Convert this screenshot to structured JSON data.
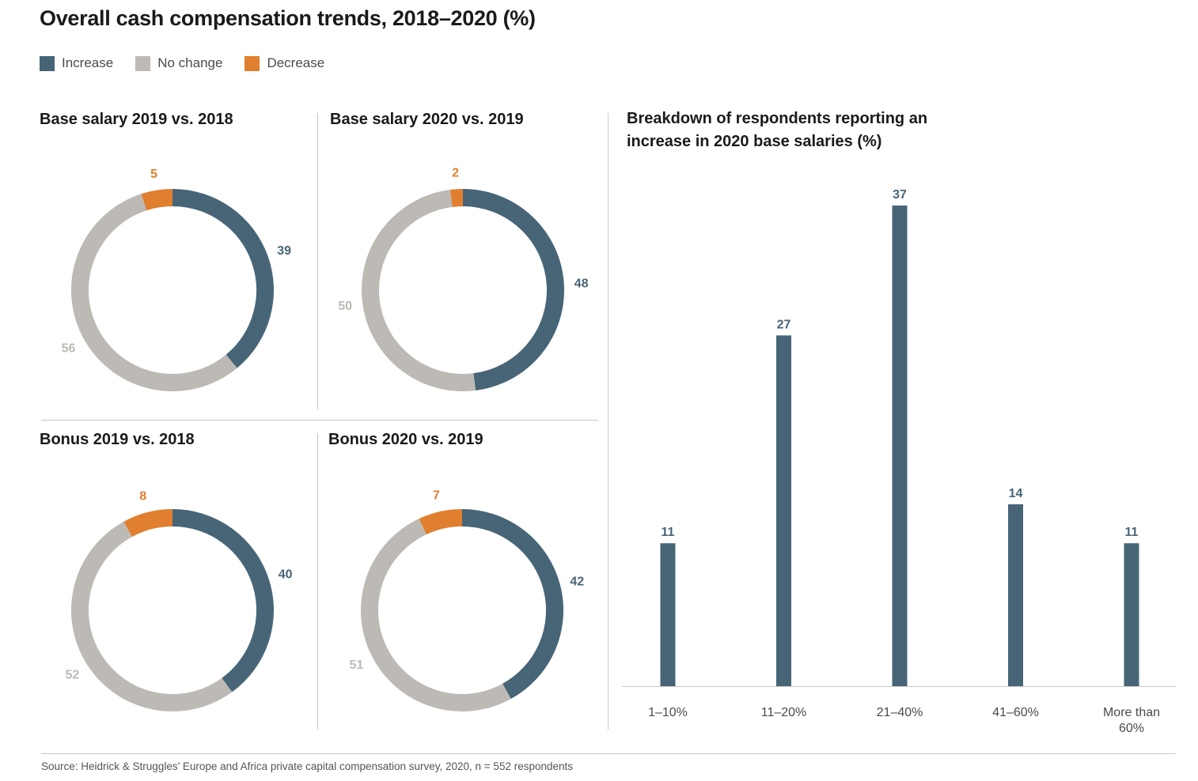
{
  "title": "Overall cash compensation trends, 2018–2020 (%)",
  "legend": [
    {
      "label": "Increase",
      "color": "#476576"
    },
    {
      "label": "No change",
      "color": "#bdbab5"
    },
    {
      "label": "Decrease",
      "color": "#e07f2f"
    }
  ],
  "colors": {
    "increase": "#476576",
    "no_change": "#bdbab5",
    "decrease": "#e07f2f"
  },
  "chart_data": [
    {
      "type": "pie",
      "title": "Base salary 2019 vs. 2018",
      "slices": [
        {
          "name": "Increase",
          "value": 39
        },
        {
          "name": "No change",
          "value": 56
        },
        {
          "name": "Decrease",
          "value": 5
        }
      ]
    },
    {
      "type": "pie",
      "title": "Base salary 2020 vs. 2019",
      "slices": [
        {
          "name": "Increase",
          "value": 48
        },
        {
          "name": "No change",
          "value": 50
        },
        {
          "name": "Decrease",
          "value": 2
        }
      ]
    },
    {
      "type": "pie",
      "title": "Bonus 2019 vs. 2018",
      "slices": [
        {
          "name": "Increase",
          "value": 40
        },
        {
          "name": "No change",
          "value": 52
        },
        {
          "name": "Decrease",
          "value": 8
        }
      ]
    },
    {
      "type": "pie",
      "title": "Bonus 2020 vs. 2019",
      "slices": [
        {
          "name": "Increase",
          "value": 42
        },
        {
          "name": "No change",
          "value": 51
        },
        {
          "name": "Decrease",
          "value": 7
        }
      ]
    },
    {
      "type": "bar",
      "title": "Breakdown of respondents reporting an increase in 2020 base salaries (%)",
      "categories": [
        "1–10%",
        "11–20%",
        "21–40%",
        "41–60%",
        "More than 60%"
      ],
      "values": [
        11,
        27,
        37,
        14,
        11
      ],
      "ylim": [
        0,
        37
      ]
    }
  ],
  "source": "Source: Heidrick & Struggles’ Europe and Africa private capital compensation survey, 2020, n = 552 respondents"
}
